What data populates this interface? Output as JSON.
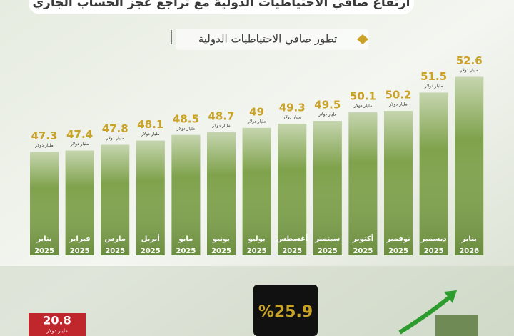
{
  "chart_data": {
    "type": "bar",
    "title": "ارتفاع صافي الاحتياطيات الدولية مع تراجع عجز الحساب الجاري",
    "subtitle": "تطور صافي الاحتياطيات الدولية",
    "categories": [
      "يناير",
      "فبراير",
      "مارس",
      "أبريل",
      "مايو",
      "يونيو",
      "يوليو",
      "أغسطس",
      "سبتمبر",
      "أكتوبر",
      "نوفمبر",
      "ديسمبر",
      "يناير"
    ],
    "years": [
      "2025",
      "2025",
      "2025",
      "2025",
      "2025",
      "2025",
      "2025",
      "2025",
      "2025",
      "2025",
      "2025",
      "2025",
      "2026"
    ],
    "values": [
      47.3,
      47.4,
      47.8,
      48.1,
      48.5,
      48.7,
      49,
      49.3,
      49.5,
      50.1,
      50.2,
      51.5,
      52.6
    ],
    "unit": "مليار دولار",
    "color": "#7fa24c",
    "ylim": [
      40,
      54
    ],
    "callouts": [
      {
        "value": 20.8,
        "unit": "مليار دولار"
      },
      {
        "value": 25.9,
        "label": "%25.9"
      }
    ]
  }
}
